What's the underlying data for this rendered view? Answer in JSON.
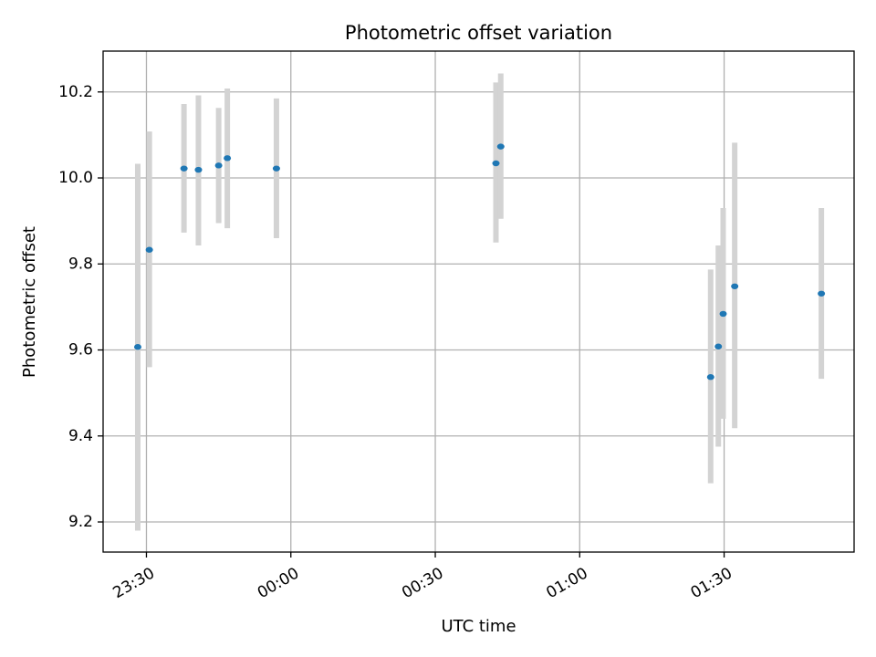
{
  "chart_data": {
    "type": "scatter",
    "title": "Photometric offset variation",
    "xlabel": "UTC time",
    "ylabel": "Photometric offset",
    "x_unit": "UTC time (HH:MM), from 23:30 on day 1 to 01:30 on day 2",
    "x_ticks": [
      "23:30",
      "00:00",
      "00:30",
      "01:00",
      "01:30"
    ],
    "y_ticks": [
      "9.2",
      "9.4",
      "9.6",
      "9.8",
      "10.0",
      "10.2"
    ],
    "xlim": [
      "23:21",
      "01:57"
    ],
    "ylim": [
      9.13,
      10.295
    ],
    "grid": true,
    "series": [
      {
        "marker_color": "#1f77b4",
        "errorbar_color": "#d3d3d3",
        "points": [
          {
            "x": "23:28:12",
            "y": 9.607,
            "y_low": 9.18,
            "y_high": 10.033
          },
          {
            "x": "23:30:36",
            "y": 9.833,
            "y_low": 9.56,
            "y_high": 10.108
          },
          {
            "x": "23:37:48",
            "y": 10.022,
            "y_low": 9.873,
            "y_high": 10.172
          },
          {
            "x": "23:40:48",
            "y": 10.019,
            "y_low": 9.843,
            "y_high": 10.192
          },
          {
            "x": "23:45:00",
            "y": 10.029,
            "y_low": 9.895,
            "y_high": 10.163
          },
          {
            "x": "23:46:48",
            "y": 10.046,
            "y_low": 9.883,
            "y_high": 10.208
          },
          {
            "x": "23:57:00",
            "y": 10.022,
            "y_low": 9.86,
            "y_high": 10.185
          },
          {
            "x": "00:42:36",
            "y": 10.034,
            "y_low": 9.85,
            "y_high": 10.222
          },
          {
            "x": "00:43:36",
            "y": 10.073,
            "y_low": 9.905,
            "y_high": 10.243
          },
          {
            "x": "01:27:12",
            "y": 9.537,
            "y_low": 9.29,
            "y_high": 9.787
          },
          {
            "x": "01:28:48",
            "y": 9.608,
            "y_low": 9.375,
            "y_high": 9.843
          },
          {
            "x": "01:29:48",
            "y": 9.684,
            "y_low": 9.44,
            "y_high": 9.93
          },
          {
            "x": "01:32:12",
            "y": 9.748,
            "y_low": 9.418,
            "y_high": 10.082
          },
          {
            "x": "01:50:12",
            "y": 9.731,
            "y_low": 9.533,
            "y_high": 9.93
          }
        ]
      }
    ]
  }
}
